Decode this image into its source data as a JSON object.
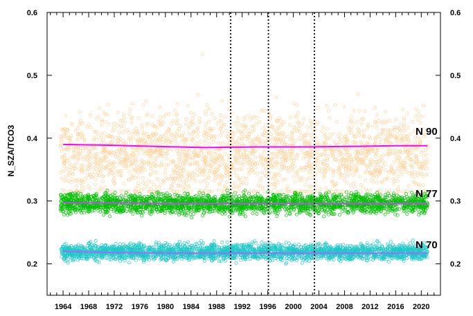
{
  "chart_data": {
    "type": "scatter",
    "title": "",
    "xlabel": "",
    "ylabel": "N_SZA/TCO3",
    "xlim": [
      1961.5,
      2023
    ],
    "ylim": [
      0.15,
      0.6
    ],
    "x_ticks": [
      1964,
      1968,
      1972,
      1976,
      1980,
      1984,
      1988,
      1992,
      1996,
      2000,
      2004,
      2008,
      2012,
      2016,
      2020
    ],
    "y_ticks": [
      "0.2",
      "0.3",
      "0.4",
      "0.5",
      "0.6"
    ],
    "y_tick_values": [
      0.2,
      0.3,
      0.4,
      0.5,
      0.6
    ],
    "right_axis_ticks": [
      "0.2",
      "0.3",
      "0.4",
      "0.5",
      "0.6"
    ],
    "vertical_reference_lines": [
      1990.2,
      1996.1,
      2003.3
    ],
    "grid": false,
    "legend": "none",
    "series": [
      {
        "name": "N 90",
        "marker_color": "#ffd39b",
        "trend_color": "#ff00ff",
        "x_range": [
          1963.6,
          2021.0
        ],
        "center": 0.375,
        "spread": 0.045,
        "max_outlier": 0.533,
        "trend": {
          "x": [
            1964,
            1970,
            1978,
            1986,
            1994,
            2002,
            2010,
            2016,
            2021
          ],
          "y": [
            0.39,
            0.389,
            0.387,
            0.385,
            0.386,
            0.386,
            0.387,
            0.388,
            0.388
          ]
        }
      },
      {
        "name": "N 77",
        "marker_color": "#00c000",
        "trend_color": "#cc44ff",
        "x_range": [
          1963.6,
          2021.0
        ],
        "center": 0.296,
        "spread": 0.011,
        "trend": {
          "x": [
            1964,
            1972,
            1980,
            1990,
            2000,
            2010,
            2021
          ],
          "y": [
            0.297,
            0.297,
            0.296,
            0.296,
            0.296,
            0.296,
            0.296
          ]
        }
      },
      {
        "name": "N 70",
        "marker_color": "#1ec8c8",
        "trend_color": "#aa66ff",
        "x_range": [
          1963.6,
          2021.0
        ],
        "center": 0.219,
        "spread": 0.009,
        "trend": {
          "x": [
            1964,
            1972,
            1980,
            1990,
            2000,
            2010,
            2021
          ],
          "y": [
            0.22,
            0.218,
            0.217,
            0.217,
            0.217,
            0.217,
            0.217
          ]
        }
      }
    ]
  }
}
